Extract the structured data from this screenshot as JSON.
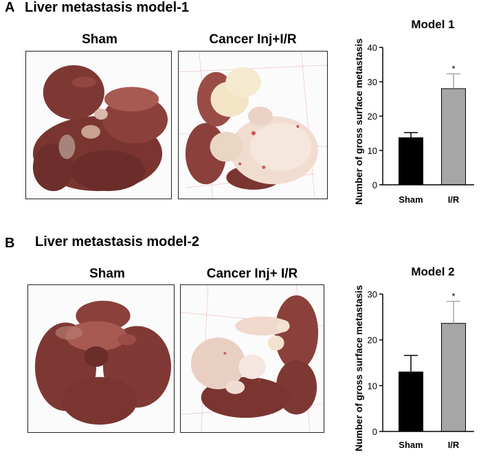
{
  "panels": [
    {
      "letter": "A",
      "title": "Liver metastasis model-1",
      "photo_labels": [
        "Sham",
        "Cancer Inj+I/R"
      ]
    },
    {
      "letter": "B",
      "title": "Liver metastasis model-2",
      "photo_labels": [
        "Sham",
        "Cancer Inj+ I/R"
      ]
    }
  ],
  "colors": {
    "liver_dark": "#6e2f2c",
    "liver_mid": "#8b403b",
    "liver_light": "#a85a52",
    "tumor": "#f1ddd0",
    "tumor_shadow": "#dcb8a6",
    "bar_sham": "#000000",
    "bar_ir": "#a6a6a6"
  },
  "chart_data": [
    {
      "type": "bar",
      "title": "Model 1",
      "categories": [
        "Sham",
        "I/R"
      ],
      "values": [
        13.7,
        28.0
      ],
      "errors": [
        1.5,
        4.3
      ],
      "significance": [
        "",
        "*"
      ],
      "ylabel": "Number of gross surface metastasis",
      "ylim": [
        0,
        40
      ],
      "yticks": [
        0,
        10,
        20,
        30,
        40
      ]
    },
    {
      "type": "bar",
      "title": "Model 2",
      "categories": [
        "Sham",
        "I/R"
      ],
      "values": [
        13.0,
        23.6
      ],
      "errors": [
        3.6,
        4.8
      ],
      "significance": [
        "",
        "*"
      ],
      "ylabel": "Number of gross surface metastasis",
      "ylim": [
        0,
        30
      ],
      "yticks": [
        0,
        10,
        20,
        30
      ]
    }
  ]
}
